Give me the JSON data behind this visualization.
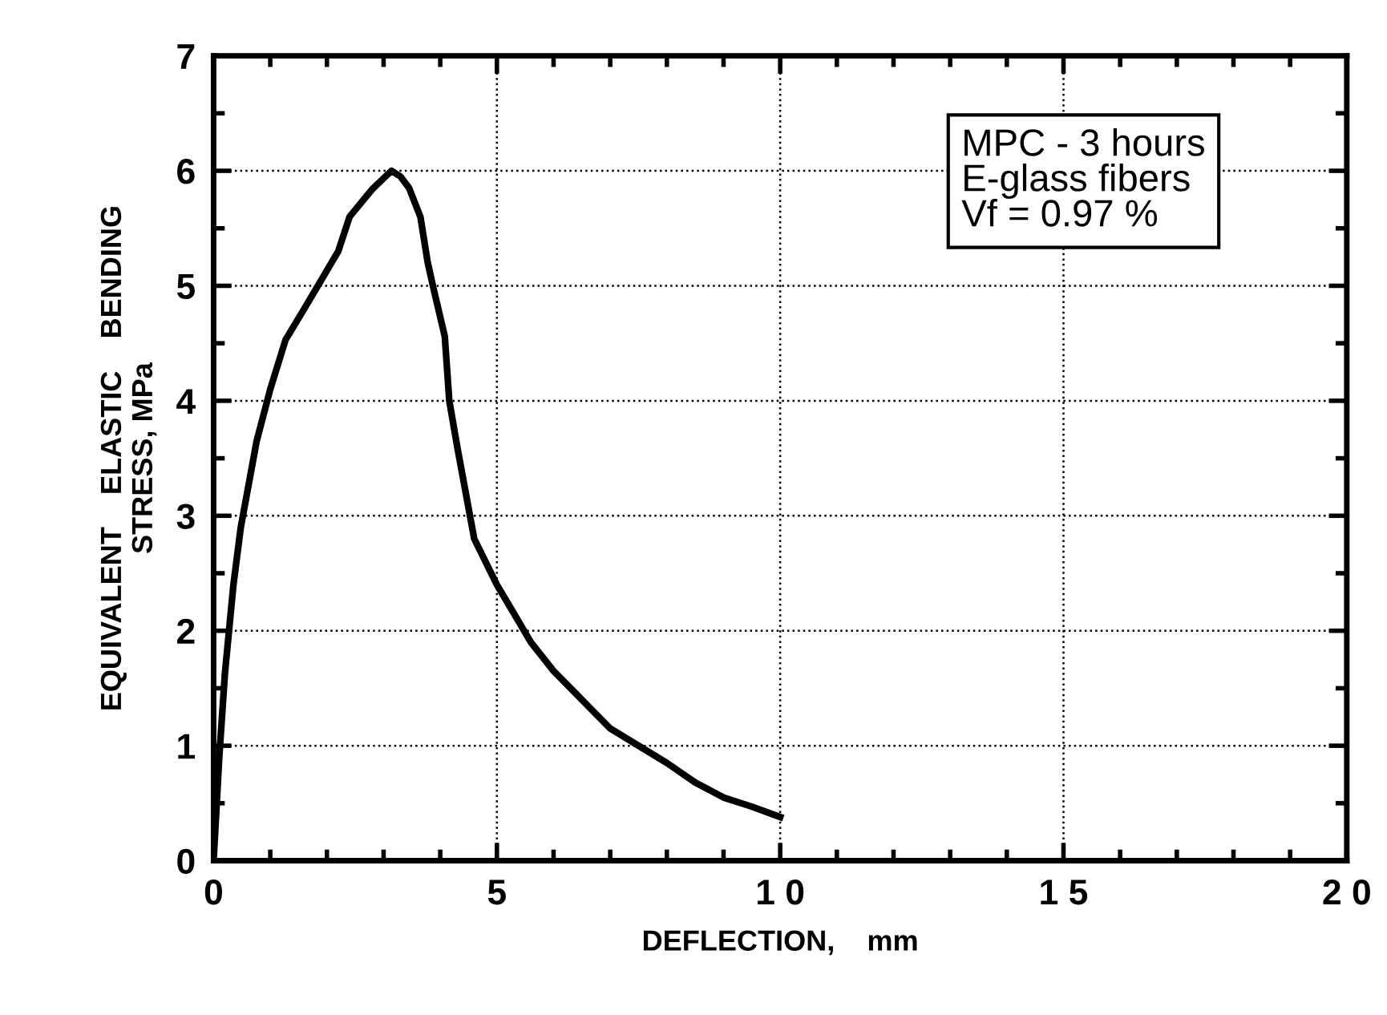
{
  "chart_data": {
    "type": "line",
    "xlabel": "DEFLECTION,    mm",
    "ylabel": "EQUIVALENT    ELASTIC    BENDING\nSTRESS, MPa",
    "annotations": [
      "MPC - 3 hours\nE-glass fibers\nVf = 0.97 %"
    ],
    "series": [
      {
        "color": "#000000",
        "x": [
          0,
          0.1,
          0.2,
          0.35,
          0.48,
          0.76,
          1.0,
          1.27,
          1.6,
          1.9,
          2.2,
          2.4,
          2.8,
          3.14,
          3.3,
          3.45,
          3.65,
          3.78,
          3.88,
          4.08,
          4.16,
          4.3,
          4.45,
          4.6,
          5.0,
          5.3,
          5.6,
          6.0,
          6.5,
          7.0,
          7.5,
          8.0,
          8.5,
          9.0,
          9.5,
          10.0
        ],
        "values": [
          0,
          0.9,
          1.63,
          2.4,
          2.9,
          3.65,
          4.1,
          4.53,
          4.8,
          5.05,
          5.3,
          5.6,
          5.84,
          6.0,
          5.95,
          5.85,
          5.6,
          5.2,
          4.98,
          4.56,
          4.0,
          3.6,
          3.2,
          2.8,
          2.4,
          2.15,
          1.9,
          1.65,
          1.4,
          1.15,
          1.0,
          0.85,
          0.68,
          0.55,
          0.47,
          0.38
        ]
      }
    ],
    "xlim": [
      0,
      20
    ],
    "ylim": [
      0,
      7
    ],
    "xticks": [
      0,
      5,
      {
        "value": 10,
        "label": "1 0"
      },
      {
        "value": 15,
        "label": "1 5"
      },
      {
        "value": 20,
        "label": "2 0"
      }
    ],
    "yticks": [
      0,
      1,
      2,
      3,
      4,
      5,
      6,
      7
    ],
    "grid": true,
    "line_style": "solid",
    "marker": "none",
    "legend": false
  }
}
